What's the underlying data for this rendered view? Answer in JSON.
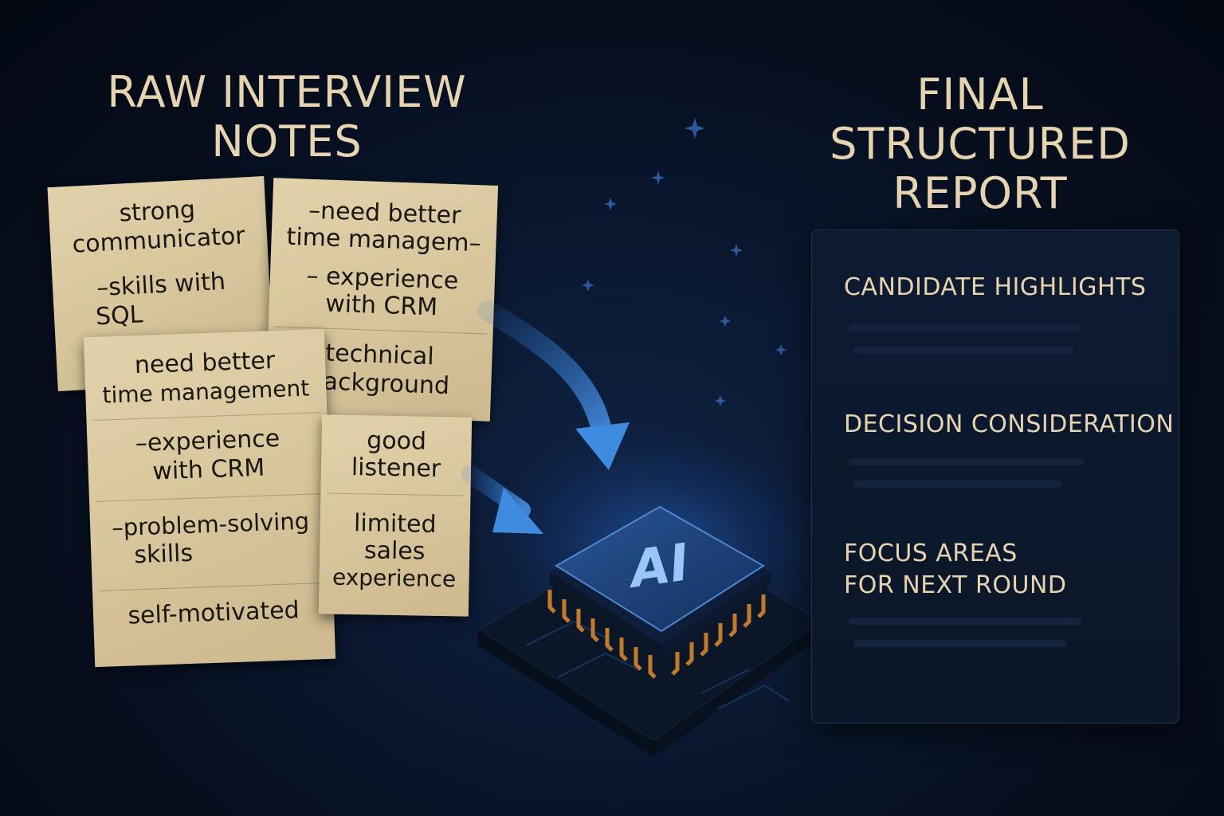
{
  "left_title": [
    "RAW INTERVIEW",
    "NOTES"
  ],
  "right_title": [
    "FINAL",
    "STRUCTURED",
    "REPORT"
  ],
  "notes": {
    "a": [
      "strong",
      "communicator",
      "–skills with",
      "SQL"
    ],
    "b": {
      "top": [
        "–need better",
        "time managem–",
        "– experience",
        "with CRM"
      ],
      "bottom": [
        "technical",
        "background"
      ]
    },
    "c": {
      "s1": [
        "need better",
        "time management"
      ],
      "s2": [
        "–experience",
        "with CRM"
      ],
      "s3": [
        "–problem-solving",
        "skills"
      ],
      "s4": [
        "self-motivated"
      ]
    },
    "d": {
      "s1": [
        "good",
        "listener"
      ],
      "s2": [
        "limited",
        "sales",
        "experience"
      ]
    }
  },
  "chip": {
    "label": "AI"
  },
  "report": {
    "sections": [
      {
        "title": [
          "CANDIDATE HIGHLIGHTS"
        ]
      },
      {
        "title": [
          "DECISION CONSIDERATION"
        ]
      },
      {
        "title": [
          "FOCUS AREAS",
          "FOR NEXT ROUND"
        ]
      }
    ]
  },
  "colors": {
    "title": "#e6d3b0",
    "note": "#d9c8a0",
    "arrow": "#3f8be0",
    "chip": "#183a6e",
    "background": "#071021"
  }
}
